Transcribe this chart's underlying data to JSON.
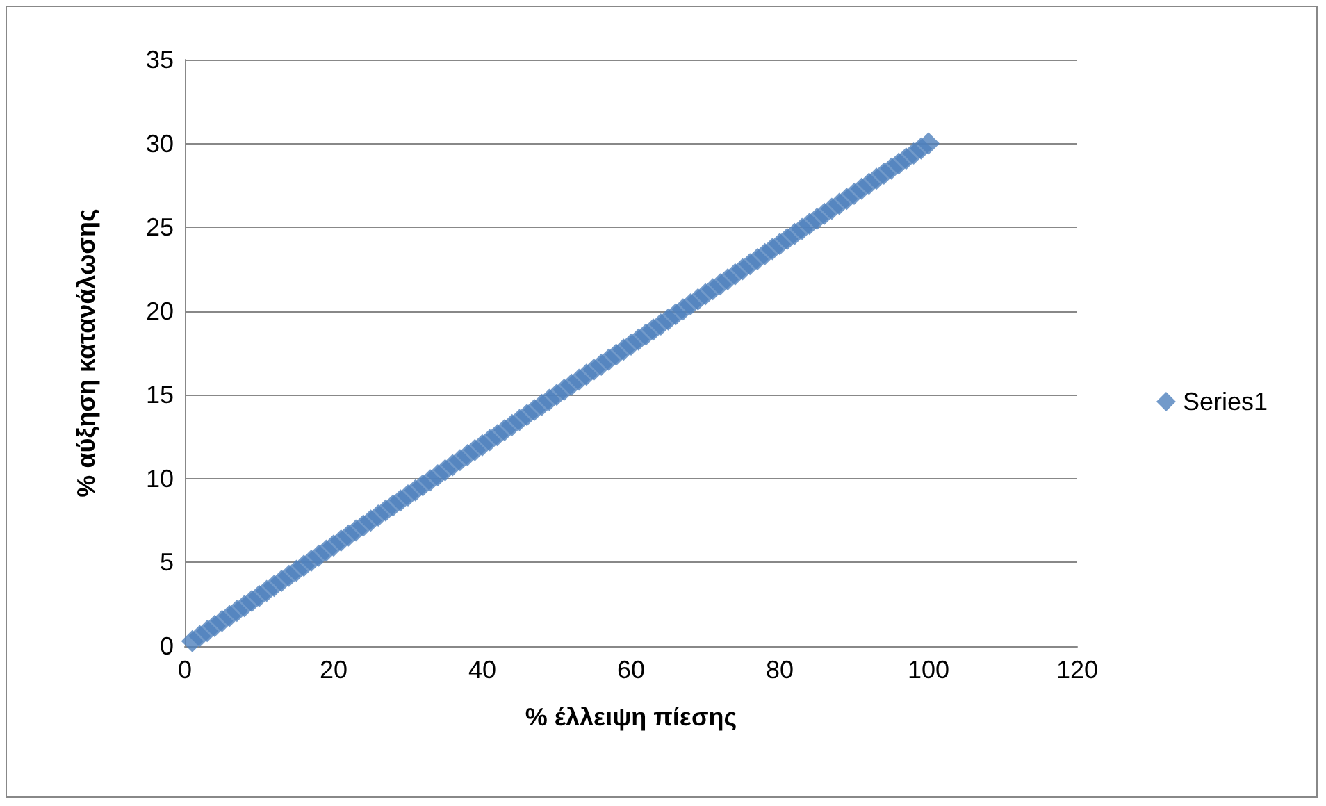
{
  "chart_data": {
    "type": "scatter",
    "xlabel": "% έλλειψη πίεσης",
    "ylabel": "% αύξηση κατανάλωσης",
    "x": [
      1,
      2,
      3,
      4,
      5,
      6,
      7,
      8,
      9,
      10,
      11,
      12,
      13,
      14,
      15,
      16,
      17,
      18,
      19,
      20,
      21,
      22,
      23,
      24,
      25,
      26,
      27,
      28,
      29,
      30,
      31,
      32,
      33,
      34,
      35,
      36,
      37,
      38,
      39,
      40,
      41,
      42,
      43,
      44,
      45,
      46,
      47,
      48,
      49,
      50,
      51,
      52,
      53,
      54,
      55,
      56,
      57,
      58,
      59,
      60,
      61,
      62,
      63,
      64,
      65,
      66,
      67,
      68,
      69,
      70,
      71,
      72,
      73,
      74,
      75,
      76,
      77,
      78,
      79,
      80,
      81,
      82,
      83,
      84,
      85,
      86,
      87,
      88,
      89,
      90,
      91,
      92,
      93,
      94,
      95,
      96,
      97,
      98,
      99,
      100
    ],
    "series": [
      {
        "name": "Series1",
        "color": "#4f81bd",
        "values": [
          0.3,
          0.6,
          0.9,
          1.2,
          1.5,
          1.8,
          2.1,
          2.4,
          2.7,
          3,
          3.3,
          3.6,
          3.9,
          4.2,
          4.5,
          4.8,
          5.1,
          5.4,
          5.7,
          6,
          6.3,
          6.6,
          6.9,
          7.2,
          7.5,
          7.8,
          8.1,
          8.4,
          8.7,
          9,
          9.3,
          9.6,
          9.9,
          10.2,
          10.5,
          10.8,
          11.1,
          11.4,
          11.7,
          12,
          12.3,
          12.6,
          12.9,
          13.2,
          13.5,
          13.8,
          14.1,
          14.4,
          14.7,
          15,
          15.3,
          15.6,
          15.9,
          16.2,
          16.5,
          16.8,
          17.1,
          17.4,
          17.7,
          18,
          18.3,
          18.6,
          18.9,
          19.2,
          19.5,
          19.8,
          20.1,
          20.4,
          20.7,
          21,
          21.3,
          21.6,
          21.9,
          22.2,
          22.5,
          22.8,
          23.1,
          23.4,
          23.7,
          24,
          24.3,
          24.6,
          24.9,
          25.2,
          25.5,
          25.8,
          26.1,
          26.4,
          26.7,
          27,
          27.3,
          27.6,
          27.9,
          28.2,
          28.5,
          28.8,
          29.1,
          29.4,
          29.7,
          30
        ]
      }
    ],
    "xlim": [
      0,
      120
    ],
    "xticks": [
      0,
      20,
      40,
      60,
      80,
      100,
      120
    ],
    "ylim": [
      0,
      35
    ],
    "yticks": [
      0,
      5,
      10,
      15,
      20,
      25,
      30,
      35
    ],
    "grid": "y",
    "legend": "right",
    "marker": "diamond"
  }
}
